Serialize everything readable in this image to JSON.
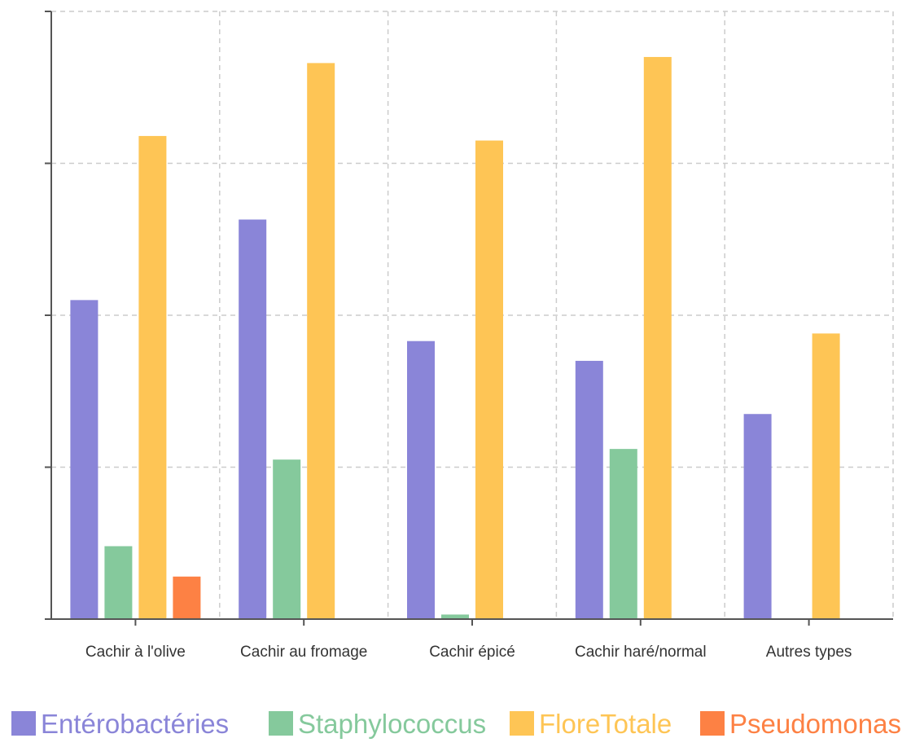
{
  "chart_data": {
    "type": "bar",
    "categories": [
      "Cachir à l'olive",
      "Cachir au fromage",
      "Cachir épicé",
      "Cachir haré/normal",
      "Autres types"
    ],
    "series": [
      {
        "name": "Entérobactéries",
        "color": "#8a85d8",
        "values": [
          2.1,
          2.63,
          1.83,
          1.7,
          1.35
        ]
      },
      {
        "name": "Staphylococcus",
        "color": "#85c99c",
        "values": [
          0.48,
          1.05,
          0.03,
          1.12,
          0
        ]
      },
      {
        "name": "FloreTotale",
        "color": "#fec555",
        "values": [
          3.18,
          3.66,
          3.15,
          3.7,
          1.88
        ]
      },
      {
        "name": "Pseudomonas",
        "color": "#fd8144",
        "values": [
          0.28,
          0,
          0,
          0,
          0
        ]
      }
    ],
    "ylim": [
      0,
      4
    ],
    "yticks": [
      0,
      1,
      2,
      3,
      4
    ],
    "grid": true,
    "legend_position": "bottom",
    "title": "",
    "xlabel": "",
    "ylabel": ""
  }
}
